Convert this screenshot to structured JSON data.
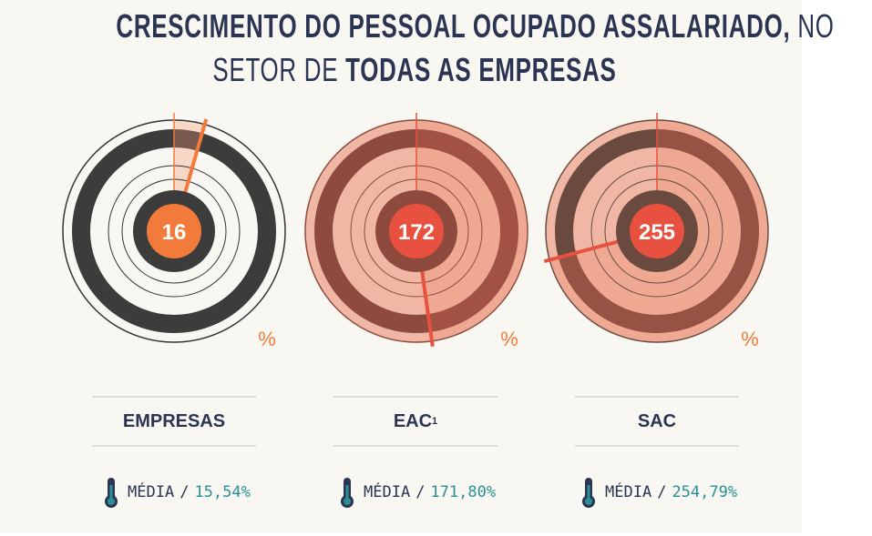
{
  "title": {
    "line1_bold": "CRESCIMENTO DO PESSOAL OCUPADO ASSALARIADO,",
    "line1_light": "NO",
    "line2_light": "SETOR DE",
    "line2_bold": "TODAS AS EMPRESAS"
  },
  "colors": {
    "navy": "#2b3553",
    "teal": "#2a9094",
    "orange": "#f27a3a",
    "red": "#e65440",
    "dark_ring": "#3a3a3a",
    "brown_ring": "#8a4a3a"
  },
  "chart_data": {
    "type": "gauge",
    "unit": "%",
    "gauges": [
      {
        "category": "EMPRESAS",
        "value": 16,
        "average_label": "MÉDIA",
        "average_value": "15,54%"
      },
      {
        "category": "EAC",
        "category_sup": "1",
        "value": 172,
        "average_label": "MÉDIA",
        "average_value": "171,80%"
      },
      {
        "category": "SAC",
        "value": 255,
        "average_label": "MÉDIA",
        "average_value": "254,79%"
      }
    ]
  },
  "labels": {
    "percent": "%",
    "media": "MÉDIA",
    "slash": "/",
    "icon": "thermometer-icon"
  }
}
